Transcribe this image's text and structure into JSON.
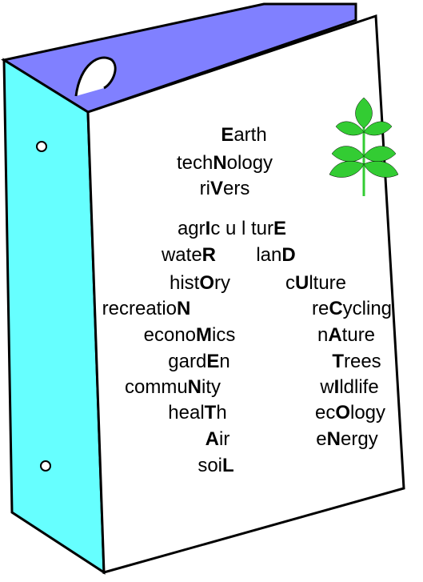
{
  "lines": [
    {
      "left": [
        {
          "text": "E",
          "bold": true
        },
        {
          "text": "arth"
        }
      ]
    },
    {
      "left": [
        {
          "text": "tech"
        },
        {
          "text": "N",
          "bold": true
        },
        {
          "text": "ology"
        }
      ]
    },
    {
      "left": [
        {
          "text": "ri"
        },
        {
          "text": "V",
          "bold": true
        },
        {
          "text": "ers"
        }
      ]
    },
    {
      "left": [
        {
          "text": "agr"
        },
        {
          "text": "I",
          "bold": true
        },
        {
          "text": "c u l tur"
        },
        {
          "text": "E",
          "bold": true
        }
      ]
    },
    {
      "left": [
        {
          "text": "wate"
        },
        {
          "text": "R",
          "bold": true
        }
      ],
      "right": [
        {
          "text": "lan"
        },
        {
          "text": "D",
          "bold": true
        }
      ]
    },
    {
      "left": [
        {
          "text": "hist"
        },
        {
          "text": "O",
          "bold": true
        },
        {
          "text": "ry"
        }
      ],
      "right": [
        {
          "text": "c"
        },
        {
          "text": "U",
          "bold": true
        },
        {
          "text": "lture"
        }
      ]
    },
    {
      "left": [
        {
          "text": "recreatio"
        },
        {
          "text": "N",
          "bold": true
        }
      ],
      "right": [
        {
          "text": "re"
        },
        {
          "text": "C",
          "bold": true
        },
        {
          "text": "ycling"
        }
      ]
    },
    {
      "left": [
        {
          "text": "econo"
        },
        {
          "text": "M",
          "bold": true
        },
        {
          "text": "ics"
        }
      ],
      "right": [
        {
          "text": "n"
        },
        {
          "text": "A",
          "bold": true
        },
        {
          "text": "ture"
        }
      ]
    },
    {
      "left": [
        {
          "text": "gard"
        },
        {
          "text": "E",
          "bold": true
        },
        {
          "text": "n"
        }
      ],
      "right": [
        {
          "text": "T",
          "bold": true
        },
        {
          "text": "rees"
        }
      ]
    },
    {
      "left": [
        {
          "text": "commu"
        },
        {
          "text": "N",
          "bold": true
        },
        {
          "text": "ity"
        }
      ],
      "right": [
        {
          "text": "w"
        },
        {
          "text": "I",
          "bold": true
        },
        {
          "text": "ldlife"
        }
      ]
    },
    {
      "left": [
        {
          "text": "heal"
        },
        {
          "text": "T",
          "bold": true
        },
        {
          "text": "h"
        }
      ],
      "right": [
        {
          "text": "ec"
        },
        {
          "text": "O",
          "bold": true
        },
        {
          "text": "logy"
        }
      ]
    },
    {
      "left": [
        {
          "text": "A",
          "bold": true
        },
        {
          "text": "ir"
        }
      ],
      "right": [
        {
          "text": "e"
        },
        {
          "text": "N",
          "bold": true
        },
        {
          "text": "ergy"
        }
      ]
    },
    {
      "left": [
        {
          "text": "soi"
        },
        {
          "text": "L",
          "bold": true
        }
      ]
    }
  ]
}
